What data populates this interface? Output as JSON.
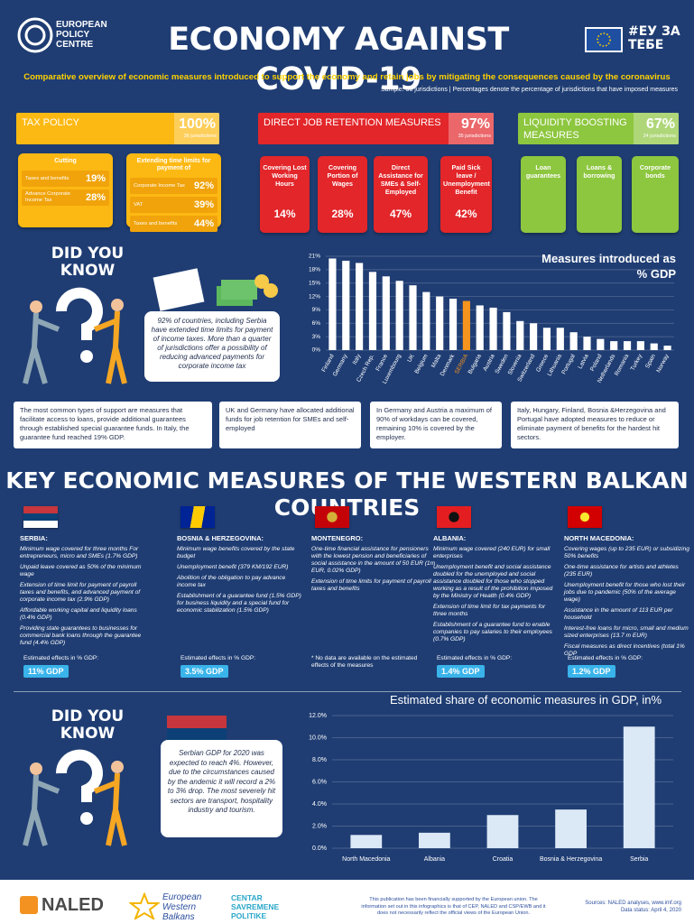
{
  "header": {
    "logo": "EUROPEAN POLICY CENTRE",
    "title": "ECONOMY AGAINST COVID-19",
    "hashtag": "#ЕУ ЗА ТЕБЕ",
    "subtitle": "Comparative overview of economic measures introduced to support the economy and retain jobs by mitigating the consequences caused by the coronavirus",
    "sample": "Sample: 36 jurisdictions | Percentages denote the percentage of jurisdictions that have imposed measures"
  },
  "policies": [
    {
      "title": "TAX POLICY",
      "share": "100%",
      "jurisdictions": "36 jurisdictions",
      "groups": [
        {
          "title": "Cutting",
          "items": [
            {
              "label": "Taxes and benefits",
              "share": "19%"
            },
            {
              "label": "Advance Corporate Income Tax",
              "share": "28%"
            }
          ]
        },
        {
          "title": "Extending time limits for payment of",
          "items": [
            {
              "label": "Corporate Income Tax",
              "share": "92%"
            },
            {
              "label": "VAT",
              "share": "39%"
            },
            {
              "label": "Taxes and benefits",
              "share": "44%"
            }
          ]
        }
      ]
    },
    {
      "title": "DIRECT JOB RETENTION MEASURES",
      "share": "97%",
      "jurisdictions": "35 jurisdictions",
      "measures": [
        {
          "label": "Covering Lost Working Hours",
          "share": "14%"
        },
        {
          "label": "Covering Portion of Wages",
          "share": "28%"
        },
        {
          "label": "Direct Assistance for SMEs & Self-Employed",
          "share": "47%"
        },
        {
          "label": "Paid Sick leave / Unemployment Benefit",
          "share": "42%"
        }
      ]
    },
    {
      "title": "LIQUIDITY BOOSTING MEASURES",
      "share": "67%",
      "jurisdictions": "24 jurisdictions",
      "measures": [
        {
          "label": "Loan guarantees"
        },
        {
          "label": "Loans & borrowing"
        },
        {
          "label": "Corporate bonds"
        }
      ]
    }
  ],
  "did_you_know": [
    {
      "title": "DID YOU KNOW",
      "text": "92% of countries, including Serbia have extended time limits for payment of income taxes. More than a quarter of jurisdictions offer a possibility of reducing advanced payments for corporate income tax"
    },
    {
      "title": "DID YOU KNOW",
      "text": "Serbian GDP for 2020 was expected to reach 4%. However, due to the circumstances caused by the andemic it will record a 2% to 3% drop. The most severely hit sectors are transport, hospitality industry and tourism."
    }
  ],
  "facts": [
    "The most common types of support are measures that facilitate access to loans, provide additional guarantees through established special guarantee funds. In Italy, the guarantee fund reached 19% GDP.",
    "UK and Germany have allocated additional funds for job retention for SMEs and self-employed",
    "In Germany and Austria a maximum of 90% of workdays can be covered, remaining 10% is covered by the employer.",
    "Italy, Hungary, Finland, Bosnia &Herzegovina and Portugal have adopted measures to reduce or eliminate payment of benefits for the hardest hit sectors."
  ],
  "western_balkans": {
    "title": "KEY ECONOMIC MEASURES OF THE WESTERN BALKAN COUNTRIES",
    "countries": [
      {
        "name": "SERBIA:",
        "measures": [
          "Minimum wage covered for three months For entrepreneurs, micro and SMEs (1.7% GDP)",
          "Unpaid leave covered as 50% of the minimum wage",
          "Extension of time limit for payment of payroll taxes and benefits, and advanced payment of corporate income tax (2.9% GDP)",
          "Affordable working capital and liquidity loans (0.4% GDP)",
          "Providing state guarantees to businesses for commercial bank loans through the guarantee fund (4.4% GDP)"
        ],
        "effects_label": "Estimated effects in % GDP:",
        "effects": "11% GDP"
      },
      {
        "name": "BOSNIA & HERZEGOVINA:",
        "measures": [
          "Minimum wage benefits covered by the state budget",
          "Unemployment benefit (379 KM/192 EUR)",
          "Abolition of the obligation to pay advance income tax",
          "Establishment of a guarantee fund (1.5% GDP) for business liquidity and a special fund for economic stabilization (1.5% GDP)"
        ],
        "effects_label": "Estimated effects in % GDP:",
        "effects": "3.5% GDP"
      },
      {
        "name": "MONTENEGRO:",
        "measures": [
          "One-time financial assistance for pensioners with the lowest pension and beneficiaries of social assistance in the amount of 50 EUR (1m EUR, 0.02% GDP)",
          "Extension of time limits for payment of payroll taxes and benefits"
        ],
        "note": "* No data are available on the estimated effects of the measures"
      },
      {
        "name": "ALBANIA:",
        "measures": [
          "Minimum wage covered (240 EUR) for small enterprises",
          "Unemployment benefit and social assistance doubled for the unemployed and social assistance doubled for those who stopped working as a result of the prohibition imposed by the Ministry of Health (0.4% GDP)",
          "Extension of time limit for tax payments for three months",
          "Establishment of a guarantee fund to enable companies to pay salaries to their employees (0.7% GDP)"
        ],
        "effects_label": "Estimated effects in % GDP:",
        "effects": "1.4% GDP"
      },
      {
        "name": "NORTH MACEDONIA:",
        "measures": [
          "Covering wages (up to 235 EUR) or subsidizing 50% benefits",
          "One-time assistance for artists and athletes (235 EUR)",
          "Unemployment benefit for those who lost their jobs due to pandemic (50% of the average wage)",
          "Assistance in the amount of 113 EUR per household",
          "Interest-free loans for micro, small and medium sized enterprises (13.7 m EUR)",
          "Fiscal measures as direct incentives (total 1% GDP"
        ],
        "effects_label": "Estimated effects in % GDP:",
        "effects": "1.2% GDP"
      }
    ]
  },
  "chart_data": [
    {
      "type": "bar",
      "title": "Measures introduced as % GDP",
      "categories": [
        "Finland",
        "Germany",
        "Italy",
        "Czech Rep.",
        "France",
        "Luxembourg",
        "UK",
        "Belgium",
        "Malta",
        "Denmark",
        "SERBIA",
        "Bulgaria",
        "Austria",
        "Sweden",
        "Slovenia",
        "Switzerland",
        "Greece",
        "Lithuania",
        "Portugal",
        "Latvia",
        "Poland",
        "Netherlands",
        "Romania",
        "Turkey",
        "Spain",
        "Norway"
      ],
      "values": [
        20.5,
        20,
        19.5,
        17.5,
        16.5,
        15.5,
        14.5,
        13,
        12,
        11.5,
        11,
        10,
        9.5,
        8.5,
        6.5,
        6,
        5,
        5,
        4,
        3,
        2.5,
        2,
        2,
        2,
        1.5,
        1
      ],
      "colors": [
        "#ffffff",
        "#ffffff",
        "#ffffff",
        "#ffffff",
        "#ffffff",
        "#ffffff",
        "#ffffff",
        "#ffffff",
        "#ffffff",
        "#ffffff",
        "#f7941d",
        "#ffffff",
        "#ffffff",
        "#ffffff",
        "#ffffff",
        "#ffffff",
        "#ffffff",
        "#ffffff",
        "#ffffff",
        "#ffffff",
        "#ffffff",
        "#ffffff",
        "#ffffff",
        "#ffffff",
        "#ffffff",
        "#ffffff"
      ],
      "ylim": [
        0,
        21
      ],
      "yticks": [
        {
          "value": 0,
          "label": "0%"
        },
        {
          "value": 3,
          "label": "3%"
        },
        {
          "value": 6,
          "label": "6%"
        },
        {
          "value": 9,
          "label": "9%"
        },
        {
          "value": 12,
          "label": "12%"
        },
        {
          "value": 15,
          "label": "15%"
        },
        {
          "value": 18,
          "label": "18%"
        },
        {
          "value": 21,
          "label": "21%"
        }
      ],
      "grid": true
    },
    {
      "type": "bar",
      "title": "Estimated share of economic measures in GDP, in%",
      "categories": [
        "North Macedonia",
        "Albania",
        "Croatia",
        "Bosnia & Herzegovina",
        "Serbia"
      ],
      "values": [
        1.2,
        1.4,
        3.0,
        3.5,
        11
      ],
      "color": "#dbe8f6",
      "ylim": [
        0,
        12
      ],
      "yticks": [
        {
          "value": 0,
          "label": "0.0%"
        },
        {
          "value": 2,
          "label": "2.0%"
        },
        {
          "value": 4,
          "label": "4.0%"
        },
        {
          "value": 6,
          "label": "6.0%"
        },
        {
          "value": 8,
          "label": "8.0%"
        },
        {
          "value": 10,
          "label": "10.0%"
        },
        {
          "value": 12,
          "label": "12.0%"
        }
      ],
      "grid": true
    }
  ],
  "footer": {
    "naled": "NALED",
    "ewb": "European Western Balkans",
    "csp": "CENTAR SAVREMENE POLITIKE",
    "disclaimer": "This publication has been financially supported by the European union. The information set out in this infographics is that of CEP, NALED and CSP/EWB and it does not necessarily reflect the official views of the European Union.",
    "sources": "Sources: NALED analyses, www.imf.org",
    "status": "Data status: April 4, 2020"
  }
}
